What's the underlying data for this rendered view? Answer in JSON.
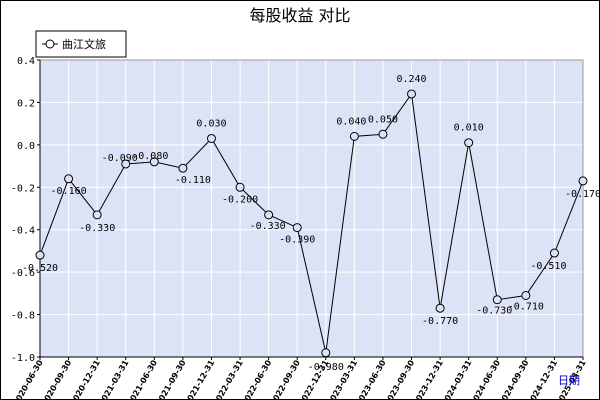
{
  "chart_data": {
    "type": "line",
    "title": "每股收益  对比",
    "x_axis_link": "日期",
    "ylim": [
      -1.0,
      0.4
    ],
    "y_ticks": [
      0.4,
      0.2,
      0.0,
      -0.2,
      -0.4,
      -0.6,
      -0.8,
      -1.0
    ],
    "y_tick_labels": [
      "0.4",
      "0.2",
      "0.0",
      "-0.2",
      "-0.4",
      "-0.6",
      "-0.8",
      "-1.0"
    ],
    "grid": true,
    "legend_position": "top-left",
    "colors": {
      "plot_bg": "#dce3f7",
      "grid": "#ffffff",
      "line": "#000000",
      "marker_fill": "#dce3f7"
    },
    "categories": [
      "2020-06-30",
      "2020-09-30",
      "2020-12-31",
      "2021-03-31",
      "2021-06-30",
      "2021-09-30",
      "2021-12-31",
      "2022-03-31",
      "2022-06-30",
      "2022-09-30",
      "2022-12-31",
      "2023-03-31",
      "2023-06-30",
      "2023-09-30",
      "2023-12-31",
      "2024-03-31",
      "2024-06-30",
      "2024-09-30",
      "2024-12-31",
      "2025-03-31"
    ],
    "series": [
      {
        "name": "曲江文旅",
        "values": [
          -0.52,
          -0.16,
          -0.33,
          -0.09,
          -0.08,
          -0.11,
          0.03,
          -0.2,
          -0.33,
          -0.39,
          -0.98,
          0.04,
          0.05,
          0.24,
          -0.77,
          0.01,
          -0.73,
          -0.71,
          -0.51,
          -0.17
        ],
        "labels": [
          "-0.520",
          "-0.160",
          "-0.330",
          "-0.090",
          "-0.080",
          "-0.110",
          "0.030",
          "-0.200",
          "-0.330",
          "-0.390",
          "-0.980",
          "0.040",
          "0.050",
          "0.240",
          "-0.770",
          "0.010",
          "-0.730",
          "-0.710",
          "-0.510",
          "-0.170"
        ]
      }
    ]
  }
}
